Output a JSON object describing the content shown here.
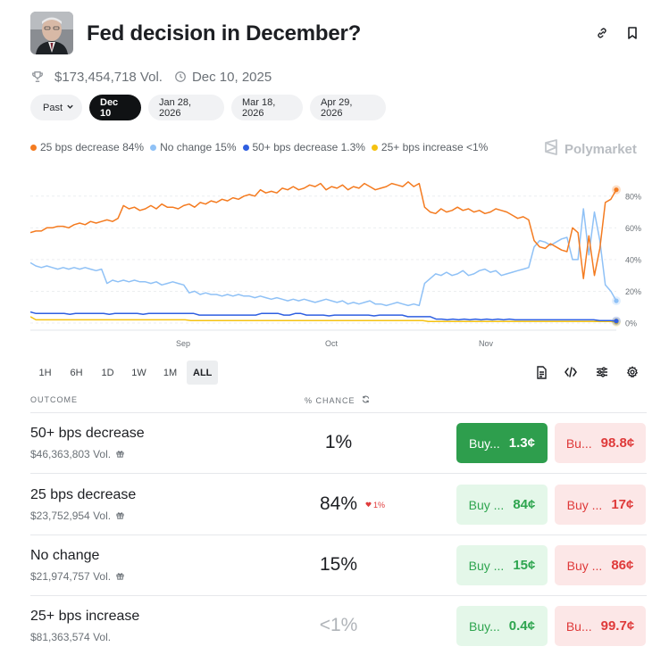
{
  "header": {
    "title": "Fed decision in December?",
    "volume": "$173,454,718 Vol.",
    "end_date": "Dec 10, 2025"
  },
  "date_tabs": [
    {
      "label": "Past"
    },
    {
      "label": "Dec 10",
      "active": true
    },
    {
      "label": "Jan 28, 2026"
    },
    {
      "label": "Mar 18, 2026"
    },
    {
      "label": "Apr 29, 2026"
    }
  ],
  "legend": [
    {
      "label": "25 bps decrease 84%",
      "color": "#f47b20"
    },
    {
      "label": "No change 15%",
      "color": "#8fc1f6"
    },
    {
      "label": "50+ bps decrease 1.3%",
      "color": "#2f5fe0"
    },
    {
      "label": "25+ bps increase <1%",
      "color": "#f5c211"
    }
  ],
  "brand": "Polymarket",
  "chart_data": {
    "type": "line",
    "x_ticks": [
      "Sep",
      "Oct",
      "Nov"
    ],
    "y_ticks": [
      "80%",
      "60%",
      "40%",
      "20%",
      "0%"
    ],
    "ylim": [
      0,
      90
    ],
    "grid": true,
    "series": [
      {
        "name": "25 bps decrease",
        "color": "#f47b20",
        "values": [
          57,
          58,
          58,
          60,
          60,
          61,
          61,
          60,
          62,
          63,
          62,
          64,
          63,
          64,
          65,
          64,
          66,
          74,
          72,
          73,
          71,
          72,
          74,
          72,
          75,
          73,
          73,
          72,
          74,
          75,
          73,
          76,
          75,
          77,
          76,
          78,
          77,
          79,
          78,
          80,
          81,
          80,
          84,
          82,
          83,
          82,
          85,
          84,
          86,
          84,
          85,
          87,
          86,
          88,
          84,
          86,
          85,
          87,
          84,
          86,
          85,
          88,
          86,
          84,
          85,
          86,
          88,
          87,
          86,
          89,
          86,
          88,
          73,
          70,
          69,
          72,
          70,
          71,
          73,
          71,
          72,
          70,
          71,
          69,
          70,
          72,
          71,
          70,
          68,
          66,
          67,
          65,
          52,
          48,
          47,
          50,
          48,
          46,
          45,
          60,
          57,
          28,
          55,
          30,
          47,
          76,
          78,
          84
        ]
      },
      {
        "name": "No change",
        "color": "#8fc1f6",
        "values": [
          38,
          36,
          35,
          36,
          35,
          34,
          35,
          34,
          35,
          34,
          35,
          34,
          33,
          34,
          25,
          27,
          26,
          27,
          26,
          27,
          26,
          26,
          25,
          26,
          24,
          25,
          26,
          25,
          24,
          19,
          20,
          18,
          19,
          18,
          18,
          17,
          18,
          17,
          18,
          17,
          17,
          16,
          17,
          16,
          15,
          16,
          15,
          14,
          15,
          14,
          15,
          14,
          13,
          14,
          15,
          14,
          13,
          14,
          12,
          13,
          12,
          13,
          14,
          12,
          12,
          11,
          12,
          13,
          12,
          11,
          12,
          11,
          25,
          28,
          31,
          30,
          32,
          30,
          31,
          33,
          30,
          31,
          33,
          34,
          32,
          33,
          30,
          31,
          32,
          33,
          34,
          35,
          48,
          52,
          51,
          49,
          51,
          53,
          54,
          40,
          40,
          72,
          43,
          70,
          52,
          24,
          20,
          14
        ]
      },
      {
        "name": "50+ bps decrease",
        "color": "#2f5fe0",
        "values": [
          7,
          6,
          6,
          6,
          6,
          6,
          6,
          5.5,
          6,
          6,
          6,
          6,
          6,
          6,
          5.5,
          6,
          6,
          6,
          6,
          6,
          5.5,
          6,
          6,
          6,
          6,
          6,
          6,
          6,
          6,
          6,
          5,
          5,
          5,
          5,
          5,
          5,
          5,
          5,
          5,
          5,
          5,
          6,
          6,
          6,
          6,
          5,
          5,
          6,
          6,
          5,
          5,
          5,
          5,
          4.5,
          5,
          5,
          5,
          5,
          5,
          5,
          5,
          4.5,
          5,
          5,
          5,
          5,
          5,
          4,
          4,
          4,
          4,
          4,
          2.5,
          2.5,
          2,
          2.5,
          2,
          2.5,
          2,
          2.5,
          2,
          2.5,
          2,
          2.5,
          2,
          2.5,
          2,
          2,
          2,
          2,
          2,
          2,
          2,
          2,
          2,
          2,
          2,
          2,
          2,
          2,
          2,
          1.5,
          1.5,
          1.5,
          1.3
        ]
      },
      {
        "name": "25+ bps increase",
        "color": "#f5c211",
        "values": [
          4,
          2,
          2,
          2,
          2,
          2,
          2,
          2,
          2,
          2,
          2,
          2,
          2,
          2,
          2,
          2,
          2,
          2,
          2,
          2,
          2,
          2,
          2,
          2,
          2,
          2,
          2,
          2,
          2,
          1.5,
          1.5,
          1.5,
          1.5,
          1.5,
          1.5,
          1.5,
          1.5,
          1.5,
          1.5,
          1.5,
          1.5,
          1.5,
          1.5,
          1.5,
          1.5,
          1.5,
          1.5,
          1.5,
          1.5,
          1.5,
          1.5,
          1.5,
          1.5,
          1.5,
          1.5,
          1.5,
          1.5,
          1.5,
          1.5,
          1.5,
          1.5,
          1.5,
          1.5,
          1.5,
          1.5,
          1.5,
          1.5,
          1.5,
          1.5,
          1.5,
          1.5,
          1.5,
          1,
          1,
          1,
          1,
          1,
          1,
          1,
          1,
          1,
          1,
          1,
          1,
          1,
          1,
          1,
          1,
          1,
          1,
          1,
          1,
          1,
          1,
          1,
          1,
          1,
          1,
          1,
          1,
          1,
          1,
          1,
          1,
          1,
          1,
          0.6
        ]
      }
    ]
  },
  "range_tabs": [
    {
      "label": "1H"
    },
    {
      "label": "6H"
    },
    {
      "label": "1D"
    },
    {
      "label": "1W"
    },
    {
      "label": "1M"
    },
    {
      "label": "ALL",
      "active": true
    }
  ],
  "table": {
    "outcome_header": "OUTCOME",
    "chance_header": "% CHANCE",
    "rows": [
      {
        "name": "50+ bps decrease",
        "volume": "$46,363,803 Vol.",
        "chance": "1%",
        "delta": "",
        "yes_label": "Buy...",
        "yes_price": "1.3¢",
        "no_label": "Bu...",
        "no_price": "98.8¢"
      },
      {
        "name": "25 bps decrease",
        "volume": "$23,752,954 Vol.",
        "chance": "84%",
        "delta": "1%",
        "yes_label": "Buy ...",
        "yes_price": "84¢",
        "no_label": "Buy ...",
        "no_price": "17¢"
      },
      {
        "name": "No change",
        "volume": "$21,974,757 Vol.",
        "chance": "15%",
        "delta": "",
        "yes_label": "Buy ...",
        "yes_price": "15¢",
        "no_label": "Buy ...",
        "no_price": "86¢"
      },
      {
        "name": "25+ bps increase",
        "volume": "$81,363,574 Vol.",
        "chance": "<1%",
        "delta": "",
        "yes_label": "Buy...",
        "yes_price": "0.4¢",
        "no_label": "Bu...",
        "no_price": "99.7¢"
      }
    ]
  }
}
